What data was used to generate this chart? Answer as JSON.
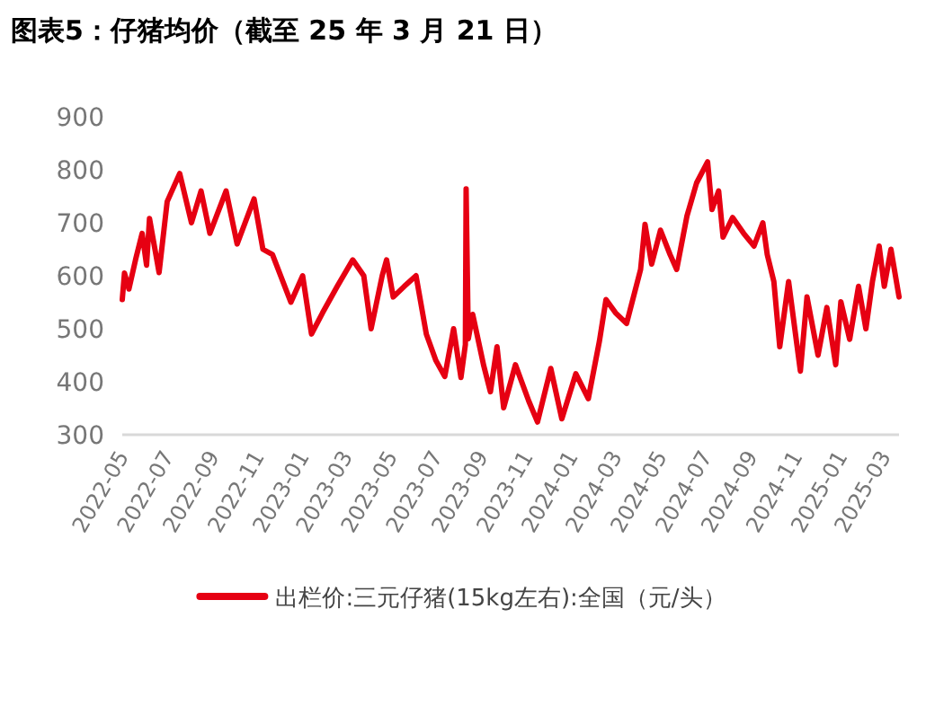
{
  "chart_data": {
    "type": "line",
    "title": "图表5：仔猪均价（截至 25 年 3 月 21 日）",
    "x": [
      "2022-05-01",
      "2022-05-04",
      "2022-05-10",
      "2022-05-19",
      "2022-05-28",
      "2022-06-03",
      "2022-06-07",
      "2022-06-20",
      "2022-07-01",
      "2022-07-18",
      "2022-08-03",
      "2022-08-16",
      "2022-08-28",
      "2022-09-19",
      "2022-10-04",
      "2022-10-27",
      "2022-11-08",
      "2022-11-21",
      "2022-12-16",
      "2023-01-01",
      "2023-01-13",
      "2023-01-28",
      "2023-02-17",
      "2023-03-10",
      "2023-03-25",
      "2023-04-04",
      "2023-04-19",
      "2023-04-25",
      "2023-05-04",
      "2023-05-19",
      "2023-06-04",
      "2023-06-18",
      "2023-07-01",
      "2023-07-13",
      "2023-07-25",
      "2023-08-04",
      "2023-08-10",
      "2023-08-11",
      "2023-08-14",
      "2023-08-20",
      "2023-09-04",
      "2023-09-13",
      "2023-09-22",
      "2023-10-01",
      "2023-10-17",
      "2023-11-04",
      "2023-11-16",
      "2023-12-04",
      "2023-12-19",
      "2024-01-07",
      "2024-01-24",
      "2024-02-08",
      "2024-02-17",
      "2024-03-01",
      "2024-03-16",
      "2024-04-04",
      "2024-04-10",
      "2024-04-19",
      "2024-05-01",
      "2024-05-14",
      "2024-05-23",
      "2024-06-06",
      "2024-06-19",
      "2024-07-04",
      "2024-07-10",
      "2024-07-19",
      "2024-07-25",
      "2024-08-07",
      "2024-08-22",
      "2024-09-05",
      "2024-09-17",
      "2024-09-23",
      "2024-10-02",
      "2024-10-10",
      "2024-10-22",
      "2024-11-07",
      "2024-11-16",
      "2024-12-01",
      "2024-12-13",
      "2024-12-25",
      "2025-01-01",
      "2025-01-13",
      "2025-01-25",
      "2025-02-04",
      "2025-02-13",
      "2025-02-22",
      "2025-03-01",
      "2025-03-10",
      "2025-03-21"
    ],
    "series": [
      {
        "name": "出栏价:三元仔猪(15kg左右):全国（元/头）",
        "color": "#e60012",
        "values": [
          555,
          605,
          575,
          630,
          680,
          620,
          708,
          606,
          740,
          793,
          700,
          760,
          680,
          760,
          660,
          745,
          650,
          640,
          550,
          600,
          490,
          530,
          580,
          630,
          600,
          500,
          600,
          630,
          560,
          580,
          600,
          490,
          440,
          410,
          500,
          408,
          470,
          764,
          481,
          527,
          430,
          381,
          466,
          351,
          432,
          364,
          324,
          425,
          330,
          415,
          368,
          476,
          555,
          530,
          510,
          612,
          697,
          622,
          686,
          640,
          612,
          713,
          775,
          815,
          725,
          760,
          673,
          710,
          680,
          656,
          700,
          640,
          589,
          466,
          589,
          420,
          560,
          450,
          540,
          432,
          551,
          480,
          580,
          500,
          590,
          656,
          580,
          650,
          560
        ]
      }
    ],
    "xlim": [
      "2022-05-01",
      "2025-03-21"
    ],
    "xticks": [
      "2022-05",
      "2022-07",
      "2022-09",
      "2022-11",
      "2023-01",
      "2023-03",
      "2023-05",
      "2023-07",
      "2023-09",
      "2023-11",
      "2024-01",
      "2024-03",
      "2024-05",
      "2024-07",
      "2024-09",
      "2024-11",
      "2025-01",
      "2025-03"
    ],
    "ylim": [
      300,
      900
    ],
    "yticks": [
      300,
      400,
      500,
      600,
      700,
      800,
      900
    ],
    "grid": false,
    "legend": "bottom",
    "marker": "none",
    "line_style": "solid"
  }
}
